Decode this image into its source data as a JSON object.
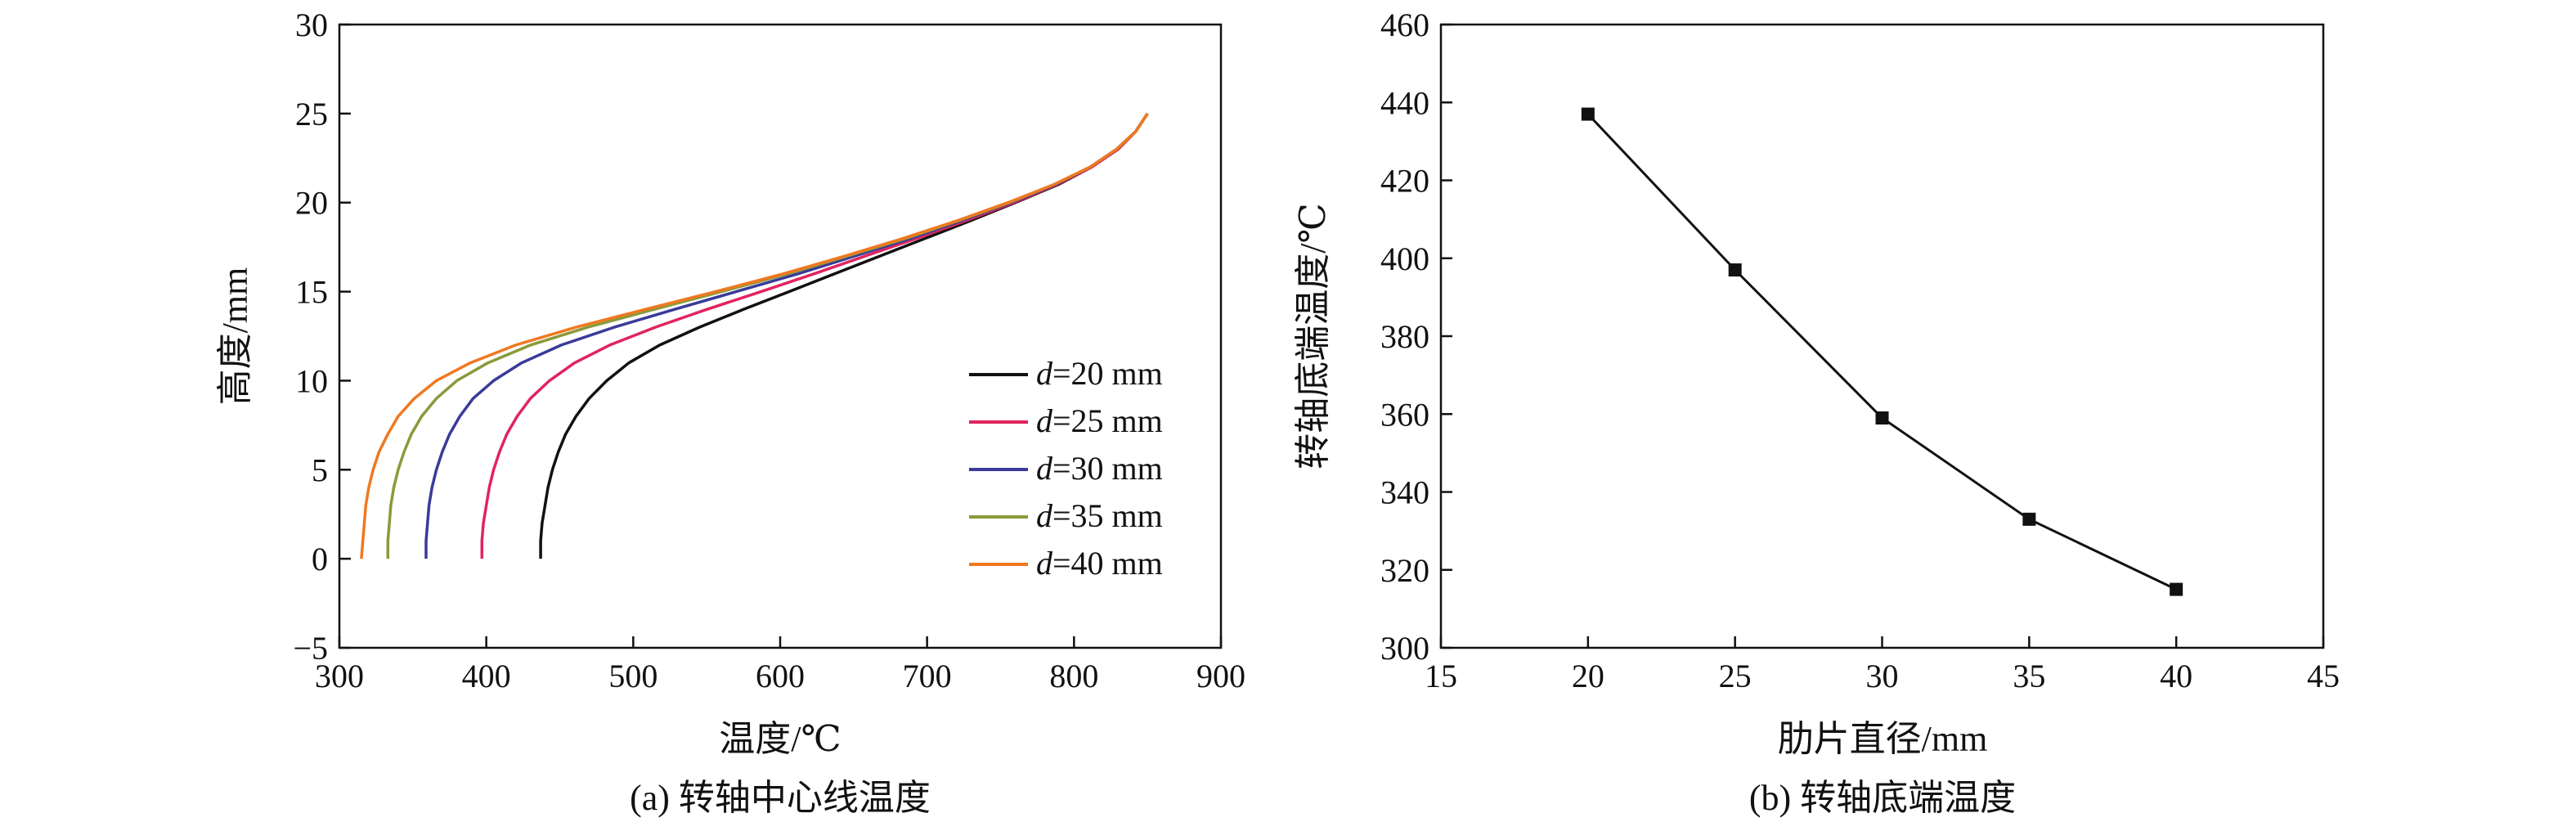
{
  "chart_data": [
    {
      "type": "line",
      "caption": "(a) 转轴中心线温度",
      "xlabel": "温度/℃",
      "ylabel": "高度/mm",
      "xlim": [
        300,
        900
      ],
      "ylim": [
        -5,
        30
      ],
      "xticks": [
        300,
        400,
        500,
        600,
        700,
        800,
        900
      ],
      "yticks": [
        -5,
        0,
        5,
        10,
        15,
        20,
        25,
        30
      ],
      "xtick_labels": [
        "300",
        "400",
        "500",
        "600",
        "700",
        "800",
        "900"
      ],
      "ytick_labels": [
        "−5",
        "0",
        "5",
        "10",
        "15",
        "20",
        "25",
        "30"
      ],
      "legend_position": "center-right",
      "series": [
        {
          "name": "d=20 mm",
          "legend_var": "d",
          "legend_rest": "=20 mm",
          "color": "#111111",
          "points": [
            [
              437,
              0
            ],
            [
              437,
              1
            ],
            [
              438,
              2
            ],
            [
              440,
              3
            ],
            [
              442,
              4
            ],
            [
              445,
              5
            ],
            [
              449,
              6
            ],
            [
              454,
              7
            ],
            [
              461,
              8
            ],
            [
              470,
              9
            ],
            [
              482,
              10
            ],
            [
              497,
              11
            ],
            [
              518,
              12
            ],
            [
              545,
              13
            ],
            [
              575,
              14
            ],
            [
              606,
              15
            ],
            [
              637,
              16
            ],
            [
              668,
              17
            ],
            [
              699,
              18
            ],
            [
              730,
              19
            ],
            [
              760,
              20
            ],
            [
              789,
              21
            ],
            [
              812,
              22
            ],
            [
              830,
              23
            ],
            [
              842,
              24
            ],
            [
              850,
              25
            ]
          ]
        },
        {
          "name": "d=25 mm",
          "legend_var": "d",
          "legend_rest": "=25 mm",
          "color": "#e0245e",
          "points": [
            [
              397,
              0
            ],
            [
              397,
              1
            ],
            [
              398,
              2
            ],
            [
              400,
              3
            ],
            [
              402,
              4
            ],
            [
              405,
              5
            ],
            [
              409,
              6
            ],
            [
              414,
              7
            ],
            [
              421,
              8
            ],
            [
              430,
              9
            ],
            [
              443,
              10
            ],
            [
              460,
              11
            ],
            [
              484,
              12
            ],
            [
              515,
              13
            ],
            [
              550,
              14
            ],
            [
              587,
              15
            ],
            [
              623,
              16
            ],
            [
              658,
              17
            ],
            [
              693,
              18
            ],
            [
              727,
              19
            ],
            [
              759,
              20
            ],
            [
              788,
              21
            ],
            [
              812,
              22
            ],
            [
              830,
              23
            ],
            [
              842,
              24
            ],
            [
              850,
              25
            ]
          ]
        },
        {
          "name": "d=30 mm",
          "legend_var": "d",
          "legend_rest": "=30 mm",
          "color": "#3a3a9a",
          "points": [
            [
              359,
              0
            ],
            [
              359,
              1
            ],
            [
              360,
              2
            ],
            [
              361,
              3
            ],
            [
              363,
              4
            ],
            [
              366,
              5
            ],
            [
              370,
              6
            ],
            [
              375,
              7
            ],
            [
              382,
              8
            ],
            [
              391,
              9
            ],
            [
              405,
              10
            ],
            [
              424,
              11
            ],
            [
              451,
              12
            ],
            [
              487,
              13
            ],
            [
              528,
              14
            ],
            [
              570,
              15
            ],
            [
              612,
              16
            ],
            [
              651,
              17
            ],
            [
              689,
              18
            ],
            [
              724,
              19
            ],
            [
              757,
              20
            ],
            [
              787,
              21
            ],
            [
              811,
              22
            ],
            [
              829,
              23
            ],
            [
              842,
              24
            ],
            [
              850,
              25
            ]
          ]
        },
        {
          "name": "d=35 mm",
          "legend_var": "d",
          "legend_rest": "=35 mm",
          "color": "#8a9a3a",
          "points": [
            [
              333,
              0
            ],
            [
              333,
              1
            ],
            [
              334,
              2
            ],
            [
              335,
              3
            ],
            [
              337,
              4
            ],
            [
              340,
              5
            ],
            [
              344,
              6
            ],
            [
              349,
              7
            ],
            [
              356,
              8
            ],
            [
              366,
              9
            ],
            [
              380,
              10
            ],
            [
              401,
              11
            ],
            [
              430,
              12
            ],
            [
              469,
              13
            ],
            [
              514,
              14
            ],
            [
              560,
              15
            ],
            [
              605,
              16
            ],
            [
              646,
              17
            ],
            [
              686,
              18
            ],
            [
              722,
              19
            ],
            [
              756,
              20
            ],
            [
              786,
              21
            ],
            [
              811,
              22
            ],
            [
              829,
              23
            ],
            [
              842,
              24
            ],
            [
              850,
              25
            ]
          ]
        },
        {
          "name": "d=40 mm",
          "legend_var": "d",
          "legend_rest": "=40 mm",
          "color": "#f07820",
          "points": [
            [
              315,
              0
            ],
            [
              316,
              1
            ],
            [
              317,
              2
            ],
            [
              318,
              3
            ],
            [
              320,
              4
            ],
            [
              323,
              5
            ],
            [
              327,
              6
            ],
            [
              333,
              7
            ],
            [
              340,
              8
            ],
            [
              351,
              9
            ],
            [
              366,
              10
            ],
            [
              389,
              11
            ],
            [
              420,
              12
            ],
            [
              461,
              13
            ],
            [
              508,
              14
            ],
            [
              556,
              15
            ],
            [
              602,
              16
            ],
            [
              644,
              17
            ],
            [
              684,
              18
            ],
            [
              721,
              19
            ],
            [
              755,
              20
            ],
            [
              786,
              21
            ],
            [
              811,
              22
            ],
            [
              829,
              23
            ],
            [
              842,
              24
            ],
            [
              850,
              25
            ]
          ]
        }
      ]
    },
    {
      "type": "line",
      "caption": "(b) 转轴底端温度",
      "xlabel": "肋片直径/mm",
      "ylabel": "转轴底端温度/℃",
      "xlim": [
        15,
        45
      ],
      "ylim": [
        300,
        460
      ],
      "xticks": [
        15,
        20,
        25,
        30,
        35,
        40,
        45
      ],
      "yticks": [
        300,
        320,
        340,
        360,
        380,
        400,
        420,
        440,
        460
      ],
      "xtick_labels": [
        "15",
        "20",
        "25",
        "30",
        "35",
        "40",
        "45"
      ],
      "ytick_labels": [
        "300",
        "320",
        "340",
        "360",
        "380",
        "400",
        "420",
        "440",
        "460"
      ],
      "marker": "square",
      "color": "#111111",
      "x": [
        20,
        25,
        30,
        35,
        40
      ],
      "y": [
        437,
        397,
        359,
        333,
        315
      ]
    }
  ]
}
